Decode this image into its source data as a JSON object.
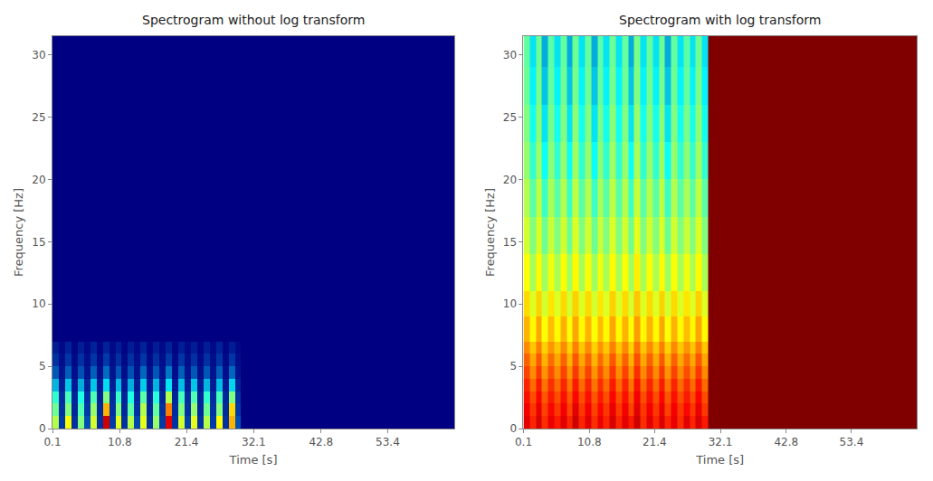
{
  "chart_data": [
    {
      "type": "heatmap",
      "title": "Spectrogram without log transform",
      "x_label": "Time [s]",
      "y_label": "Frequency [Hz]",
      "xlim": [
        0.1,
        64.0
      ],
      "ylim": [
        0,
        31.5
      ],
      "xticks": [
        0.1,
        10.8,
        21.4,
        32.1,
        42.8,
        53.4
      ],
      "yticks": [
        0,
        5,
        10,
        15,
        20,
        25,
        30
      ],
      "x_bins": [
        0.1,
        1.1,
        2.1,
        3.1,
        4.1,
        5.1,
        6.1,
        7.1,
        8.1,
        9.1,
        10.1,
        11.1,
        12.1,
        13.1,
        14.1,
        15.1,
        16.1,
        17.1,
        18.1,
        19.1,
        20.1,
        21.1,
        22.1,
        23.1,
        24.1,
        25.1,
        26.1,
        27.1,
        28.1,
        29.1,
        30.1,
        64.0
      ],
      "y_bins": [
        0,
        1,
        2,
        3,
        4,
        5,
        6,
        7,
        9,
        11,
        14,
        17,
        20,
        23,
        26,
        29,
        31.5
      ],
      "zlim": [
        0,
        1
      ],
      "z": [
        [
          0.55,
          0.12,
          0.62,
          0.1,
          0.5,
          0.15,
          0.58,
          0.1,
          0.92,
          0.12,
          0.6,
          0.1,
          0.55,
          0.14,
          0.6,
          0.1,
          0.52,
          0.12,
          0.9,
          0.1,
          0.58,
          0.13,
          0.6,
          0.1,
          0.55,
          0.12,
          0.62,
          0.1,
          0.7,
          0.15,
          0
        ],
        [
          0.48,
          0.1,
          0.5,
          0.08,
          0.45,
          0.12,
          0.52,
          0.09,
          0.7,
          0.1,
          0.5,
          0.08,
          0.46,
          0.1,
          0.55,
          0.08,
          0.47,
          0.1,
          0.75,
          0.09,
          0.5,
          0.1,
          0.52,
          0.08,
          0.48,
          0.1,
          0.5,
          0.09,
          0.66,
          0.12,
          0
        ],
        [
          0.42,
          0.09,
          0.44,
          0.08,
          0.4,
          0.1,
          0.45,
          0.07,
          0.5,
          0.09,
          0.43,
          0.07,
          0.4,
          0.09,
          0.46,
          0.07,
          0.41,
          0.08,
          0.55,
          0.08,
          0.44,
          0.09,
          0.45,
          0.07,
          0.42,
          0.09,
          0.44,
          0.08,
          0.5,
          0.1,
          0
        ],
        [
          0.28,
          0.06,
          0.3,
          0.05,
          0.27,
          0.07,
          0.3,
          0.05,
          0.33,
          0.06,
          0.29,
          0.05,
          0.27,
          0.06,
          0.31,
          0.05,
          0.28,
          0.06,
          0.34,
          0.05,
          0.29,
          0.06,
          0.3,
          0.05,
          0.28,
          0.06,
          0.29,
          0.05,
          0.32,
          0.07,
          0
        ],
        [
          0.16,
          0.04,
          0.17,
          0.03,
          0.15,
          0.04,
          0.17,
          0.03,
          0.19,
          0.04,
          0.16,
          0.03,
          0.15,
          0.04,
          0.18,
          0.03,
          0.16,
          0.04,
          0.2,
          0.03,
          0.17,
          0.04,
          0.16,
          0.03,
          0.16,
          0.04,
          0.17,
          0.03,
          0.18,
          0.04,
          0
        ],
        [
          0.1,
          0.03,
          0.11,
          0.02,
          0.1,
          0.03,
          0.11,
          0.02,
          0.12,
          0.03,
          0.1,
          0.02,
          0.1,
          0.03,
          0.11,
          0.02,
          0.1,
          0.03,
          0.12,
          0.02,
          0.11,
          0.03,
          0.1,
          0.02,
          0.1,
          0.03,
          0.11,
          0.02,
          0.11,
          0.03,
          0
        ],
        [
          0.06,
          0.02,
          0.07,
          0.01,
          0.06,
          0.02,
          0.07,
          0.01,
          0.07,
          0.02,
          0.06,
          0.01,
          0.06,
          0.02,
          0.07,
          0.01,
          0.06,
          0.02,
          0.07,
          0.01,
          0.06,
          0.02,
          0.06,
          0.01,
          0.06,
          0.02,
          0.07,
          0.01,
          0.06,
          0.02,
          0
        ],
        [
          0,
          0,
          0,
          0,
          0,
          0,
          0,
          0,
          0,
          0,
          0,
          0,
          0,
          0,
          0,
          0,
          0,
          0,
          0,
          0,
          0,
          0,
          0,
          0,
          0,
          0,
          0,
          0,
          0,
          0,
          0
        ],
        [
          0,
          0,
          0,
          0,
          0,
          0,
          0,
          0,
          0,
          0,
          0,
          0,
          0,
          0,
          0,
          0,
          0,
          0,
          0,
          0,
          0,
          0,
          0,
          0,
          0,
          0,
          0,
          0,
          0,
          0,
          0
        ],
        [
          0,
          0,
          0,
          0,
          0,
          0,
          0,
          0,
          0,
          0,
          0,
          0,
          0,
          0,
          0,
          0,
          0,
          0,
          0,
          0,
          0,
          0,
          0,
          0,
          0,
          0,
          0,
          0,
          0,
          0,
          0
        ],
        [
          0,
          0,
          0,
          0,
          0,
          0,
          0,
          0,
          0,
          0,
          0,
          0,
          0,
          0,
          0,
          0,
          0,
          0,
          0,
          0,
          0,
          0,
          0,
          0,
          0,
          0,
          0,
          0,
          0,
          0,
          0
        ],
        [
          0,
          0,
          0,
          0,
          0,
          0,
          0,
          0,
          0,
          0,
          0,
          0,
          0,
          0,
          0,
          0,
          0,
          0,
          0,
          0,
          0,
          0,
          0,
          0,
          0,
          0,
          0,
          0,
          0,
          0,
          0
        ],
        [
          0,
          0,
          0,
          0,
          0,
          0,
          0,
          0,
          0,
          0,
          0,
          0,
          0,
          0,
          0,
          0,
          0,
          0,
          0,
          0,
          0,
          0,
          0,
          0,
          0,
          0,
          0,
          0,
          0,
          0,
          0
        ],
        [
          0,
          0,
          0,
          0,
          0,
          0,
          0,
          0,
          0,
          0,
          0,
          0,
          0,
          0,
          0,
          0,
          0,
          0,
          0,
          0,
          0,
          0,
          0,
          0,
          0,
          0,
          0,
          0,
          0,
          0,
          0
        ],
        [
          0,
          0,
          0,
          0,
          0,
          0,
          0,
          0,
          0,
          0,
          0,
          0,
          0,
          0,
          0,
          0,
          0,
          0,
          0,
          0,
          0,
          0,
          0,
          0,
          0,
          0,
          0,
          0,
          0,
          0,
          0
        ],
        [
          0,
          0,
          0,
          0,
          0,
          0,
          0,
          0,
          0,
          0,
          0,
          0,
          0,
          0,
          0,
          0,
          0,
          0,
          0,
          0,
          0,
          0,
          0,
          0,
          0,
          0,
          0,
          0,
          0,
          0,
          0
        ]
      ]
    },
    {
      "type": "heatmap",
      "title": "Spectrogram with log transform",
      "x_label": "Time [s]",
      "y_label": "Frequency [Hz]",
      "xlim": [
        0.1,
        64.0
      ],
      "ylim": [
        0,
        31.5
      ],
      "xticks": [
        0.1,
        10.8,
        21.4,
        32.1,
        42.8,
        53.4
      ],
      "yticks": [
        0,
        5,
        10,
        15,
        20,
        25,
        30
      ],
      "x_bins": [
        0.1,
        1.1,
        2.1,
        3.1,
        4.1,
        5.1,
        6.1,
        7.1,
        8.1,
        9.1,
        10.1,
        11.1,
        12.1,
        13.1,
        14.1,
        15.1,
        16.1,
        17.1,
        18.1,
        19.1,
        20.1,
        21.1,
        22.1,
        23.1,
        24.1,
        25.1,
        26.1,
        27.1,
        28.1,
        29.1,
        30.1,
        64.0
      ],
      "y_bins": [
        0,
        1,
        2,
        3,
        4,
        5,
        6,
        7,
        9,
        11,
        14,
        17,
        20,
        23,
        26,
        29,
        31.5
      ],
      "zlim": [
        -10,
        0
      ],
      "z": [
        [
          -1.0,
          -1.6,
          -0.9,
          -1.7,
          -1.1,
          -1.5,
          -1.0,
          -1.6,
          -0.8,
          -1.6,
          -1.0,
          -1.7,
          -1.1,
          -1.6,
          -0.9,
          -1.6,
          -1.0,
          -1.5,
          -0.8,
          -1.7,
          -1.0,
          -1.6,
          -0.9,
          -1.6,
          -1.1,
          -1.7,
          -1.0,
          -1.6,
          -0.9,
          -1.5,
          0
        ],
        [
          -1.2,
          -1.8,
          -1.1,
          -1.9,
          -1.3,
          -1.8,
          -1.2,
          -1.9,
          -1.0,
          -1.8,
          -1.2,
          -1.9,
          -1.3,
          -1.8,
          -1.1,
          -1.8,
          -1.2,
          -1.9,
          -1.0,
          -1.8,
          -1.2,
          -1.8,
          -1.1,
          -1.9,
          -1.2,
          -1.8,
          -1.3,
          -1.8,
          -1.1,
          -1.8,
          0
        ],
        [
          -1.4,
          -2.0,
          -1.3,
          -2.1,
          -1.5,
          -2.0,
          -1.4,
          -2.1,
          -1.3,
          -2.0,
          -1.4,
          -2.1,
          -1.5,
          -2.0,
          -1.3,
          -2.0,
          -1.4,
          -2.1,
          -1.2,
          -2.0,
          -1.4,
          -2.0,
          -1.3,
          -2.1,
          -1.4,
          -2.0,
          -1.5,
          -2.0,
          -1.3,
          -2.0,
          0
        ],
        [
          -1.6,
          -2.3,
          -1.5,
          -2.4,
          -1.7,
          -2.3,
          -1.6,
          -2.4,
          -1.5,
          -2.3,
          -1.6,
          -2.4,
          -1.7,
          -2.3,
          -1.5,
          -2.3,
          -1.6,
          -2.4,
          -1.4,
          -2.3,
          -1.6,
          -2.3,
          -1.5,
          -2.4,
          -1.6,
          -2.3,
          -1.7,
          -2.3,
          -1.5,
          -2.3,
          0
        ],
        [
          -1.9,
          -2.6,
          -1.8,
          -2.7,
          -2.0,
          -2.6,
          -1.9,
          -2.7,
          -1.8,
          -2.6,
          -1.9,
          -2.7,
          -2.0,
          -2.6,
          -1.8,
          -2.6,
          -1.9,
          -2.7,
          -1.7,
          -2.6,
          -1.9,
          -2.6,
          -1.8,
          -2.7,
          -1.9,
          -2.6,
          -2.0,
          -2.6,
          -1.8,
          -2.6,
          0
        ],
        [
          -2.2,
          -2.9,
          -2.1,
          -3.0,
          -2.3,
          -2.9,
          -2.2,
          -3.0,
          -2.1,
          -2.9,
          -2.2,
          -3.0,
          -2.3,
          -2.9,
          -2.1,
          -2.9,
          -2.2,
          -3.0,
          -2.0,
          -2.9,
          -2.2,
          -2.9,
          -2.1,
          -3.0,
          -2.2,
          -2.9,
          -2.3,
          -2.9,
          -2.1,
          -2.9,
          0
        ],
        [
          -2.6,
          -3.2,
          -2.5,
          -3.3,
          -2.7,
          -3.2,
          -2.6,
          -3.3,
          -2.5,
          -3.2,
          -2.6,
          -3.3,
          -2.7,
          -3.2,
          -2.5,
          -3.2,
          -2.6,
          -3.3,
          -2.4,
          -3.2,
          -2.6,
          -3.2,
          -2.5,
          -3.3,
          -2.6,
          -3.2,
          -2.7,
          -3.2,
          -2.5,
          -3.2,
          0
        ],
        [
          -3.0,
          -3.7,
          -2.9,
          -3.8,
          -3.1,
          -3.7,
          -3.0,
          -3.8,
          -2.9,
          -3.7,
          -3.0,
          -3.8,
          -3.1,
          -3.7,
          -2.9,
          -3.7,
          -3.0,
          -3.8,
          -2.8,
          -3.7,
          -3.0,
          -3.7,
          -2.9,
          -3.8,
          -3.0,
          -3.7,
          -3.1,
          -3.7,
          -2.9,
          -3.7,
          0
        ],
        [
          -3.4,
          -4.1,
          -3.3,
          -4.2,
          -3.5,
          -4.1,
          -3.4,
          -4.2,
          -3.3,
          -4.1,
          -3.4,
          -4.2,
          -3.5,
          -4.1,
          -3.3,
          -4.1,
          -3.4,
          -4.2,
          -3.2,
          -4.1,
          -3.4,
          -4.1,
          -3.3,
          -4.2,
          -3.4,
          -4.1,
          -3.5,
          -4.1,
          -3.3,
          -4.1,
          0
        ],
        [
          -3.8,
          -4.6,
          -3.7,
          -4.7,
          -3.9,
          -4.6,
          -3.8,
          -4.7,
          -3.7,
          -4.6,
          -3.8,
          -4.7,
          -3.9,
          -4.6,
          -3.7,
          -4.6,
          -3.8,
          -4.7,
          -3.6,
          -4.6,
          -3.8,
          -4.6,
          -3.7,
          -4.7,
          -3.8,
          -4.6,
          -3.9,
          -4.6,
          -3.7,
          -4.6,
          0
        ],
        [
          -4.2,
          -5.0,
          -4.1,
          -5.2,
          -4.3,
          -5.0,
          -4.2,
          -5.2,
          -4.1,
          -5.0,
          -4.2,
          -5.2,
          -4.3,
          -5.0,
          -4.1,
          -5.0,
          -4.2,
          -5.2,
          -4.0,
          -5.0,
          -4.2,
          -5.0,
          -4.1,
          -5.2,
          -4.2,
          -5.0,
          -4.3,
          -5.0,
          -4.1,
          -5.0,
          0
        ],
        [
          -4.5,
          -5.4,
          -4.4,
          -5.7,
          -4.6,
          -5.4,
          -4.5,
          -5.7,
          -4.4,
          -5.4,
          -4.5,
          -5.7,
          -4.6,
          -5.4,
          -4.4,
          -5.4,
          -4.5,
          -5.7,
          -4.3,
          -5.4,
          -4.5,
          -5.4,
          -4.4,
          -5.7,
          -4.5,
          -5.4,
          -4.6,
          -5.4,
          -4.4,
          -5.4,
          0
        ],
        [
          -4.8,
          -5.8,
          -4.7,
          -6.2,
          -4.9,
          -5.8,
          -4.8,
          -6.2,
          -4.7,
          -5.8,
          -4.8,
          -6.2,
          -4.9,
          -5.8,
          -4.7,
          -5.8,
          -4.8,
          -6.2,
          -4.6,
          -5.8,
          -4.8,
          -5.8,
          -4.7,
          -6.2,
          -4.8,
          -5.8,
          -4.9,
          -5.8,
          -4.7,
          -5.8,
          0
        ],
        [
          -5.0,
          -6.1,
          -4.9,
          -6.6,
          -5.1,
          -6.1,
          -5.0,
          -6.6,
          -4.9,
          -6.1,
          -5.0,
          -6.6,
          -5.1,
          -6.1,
          -4.9,
          -6.1,
          -5.0,
          -6.6,
          -4.8,
          -6.1,
          -5.0,
          -6.1,
          -4.9,
          -6.6,
          -5.0,
          -6.1,
          -5.1,
          -6.1,
          -4.9,
          -6.1,
          0
        ],
        [
          -5.2,
          -6.4,
          -5.1,
          -7.0,
          -5.3,
          -6.4,
          -5.2,
          -7.0,
          -5.1,
          -6.4,
          -5.2,
          -7.0,
          -5.3,
          -6.4,
          -5.1,
          -6.4,
          -5.2,
          -7.0,
          -5.0,
          -6.4,
          -5.2,
          -6.4,
          -5.1,
          -7.0,
          -5.2,
          -6.4,
          -5.3,
          -6.4,
          -5.1,
          -6.4,
          0
        ],
        [
          -5.3,
          -6.6,
          -5.2,
          -7.3,
          -5.4,
          -6.6,
          -5.3,
          -7.3,
          -5.2,
          -6.6,
          -5.3,
          -7.3,
          -5.4,
          -6.6,
          -5.2,
          -6.6,
          -5.3,
          -7.3,
          -5.1,
          -6.6,
          -5.3,
          -6.6,
          -5.2,
          -7.3,
          -5.3,
          -6.6,
          -5.4,
          -6.6,
          -5.2,
          -6.6,
          0
        ]
      ]
    }
  ]
}
